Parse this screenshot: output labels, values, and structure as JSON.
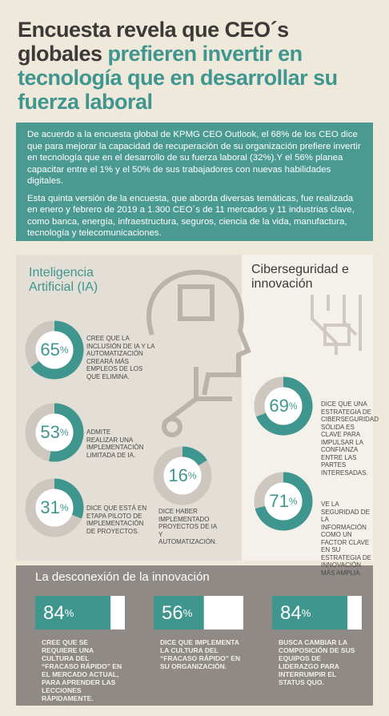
{
  "title": {
    "dark": "Encuesta revela que CEO´s globales",
    "teal": "prefieren invertir en tecnología que en desarrollar su fuerza laboral"
  },
  "intro": [
    "De acuerdo a la encuesta global de KPMG CEO Outlook, el 68% de los CEO dice que para mejorar la capacidad de recuperación de su organización prefiere invertir en tecnología que en el desarrollo de su fuerza laboral (32%).Y el 56% planea capacitar entre el 1% y el 50% de sus trabajadores con nuevas habilidades digitales.",
    "Esta quinta versión de la encuesta, que aborda diversas temáticas, fue realizada en enero y febrero de 2019 a 1.300 CEO´s de 11 mercados y 11 industrias clave, como banca, energía, infraestructura, seguros, ciencia de la vida, manufactura, tecnología y telecomunicaciones."
  ],
  "unit": "%",
  "ai": {
    "heading": "Inteligencia Artificial (IA)",
    "stats": [
      {
        "value": 65,
        "text": "CREE QUE LA INCLUSIÓN DE IA Y LA AUTOMATIZACIÓN CREARÁ MÁS EMPLEOS DE LOS QUE ELIMINA."
      },
      {
        "value": 53,
        "text": "ADMITE REALIZAR UNA IMPLEMENTACIÓN LIMITADA DE IA."
      },
      {
        "value": 31,
        "text": "DICE QUE ESTÁ EN ETAPA PILOTO DE IMPLEMENTACIÓN DE PROYECTOS."
      },
      {
        "value": 16,
        "text": "DICE HABER IMPLEMENTADO PROYECTOS DE IA Y AUTOMATIZACIÓN."
      }
    ]
  },
  "cyber": {
    "heading": "Ciberseguridad e innovación",
    "stats": [
      {
        "value": 69,
        "text": "DICE QUE UNA ESTRATEGIA DE CIBERSEGURIDAD SÓLIDA ES CLAVE PARA IMPULSAR LA CONFIANZA ENTRE LAS PARTES INTERESADAS."
      },
      {
        "value": 71,
        "text": "VE LA SEGURIDAD DE LA INFORMACIÓN COMO UN FACTOR CLAVE EN SU ESTRATEGIA DE INNOVACIÓN MÁS AMPLIA."
      }
    ]
  },
  "gap": {
    "heading": "La desconexión de la innovación",
    "stats": [
      {
        "value": 84,
        "text": "CREE QUE SE REQUIERE UNA CULTURA DEL “FRACASO RÁPIDO” EN EL MERCADO ACTUAL, PARA APRENDER LAS LECCIONES RÁPIDAMENTE."
      },
      {
        "value": 56,
        "text": "DICE QUE IMPLEMENTA LA CULTURA DEL “FRACASO RÁPIDO” EN SU ORGANIZACIÓN."
      },
      {
        "value": 84,
        "text": "BUSCA CAMBIAR LA COMPOSICIÓN DE SUS EQUIPOS DE LIDERAZGO PARA INTERRUMPIR EL STATUS QUO."
      }
    ]
  }
}
